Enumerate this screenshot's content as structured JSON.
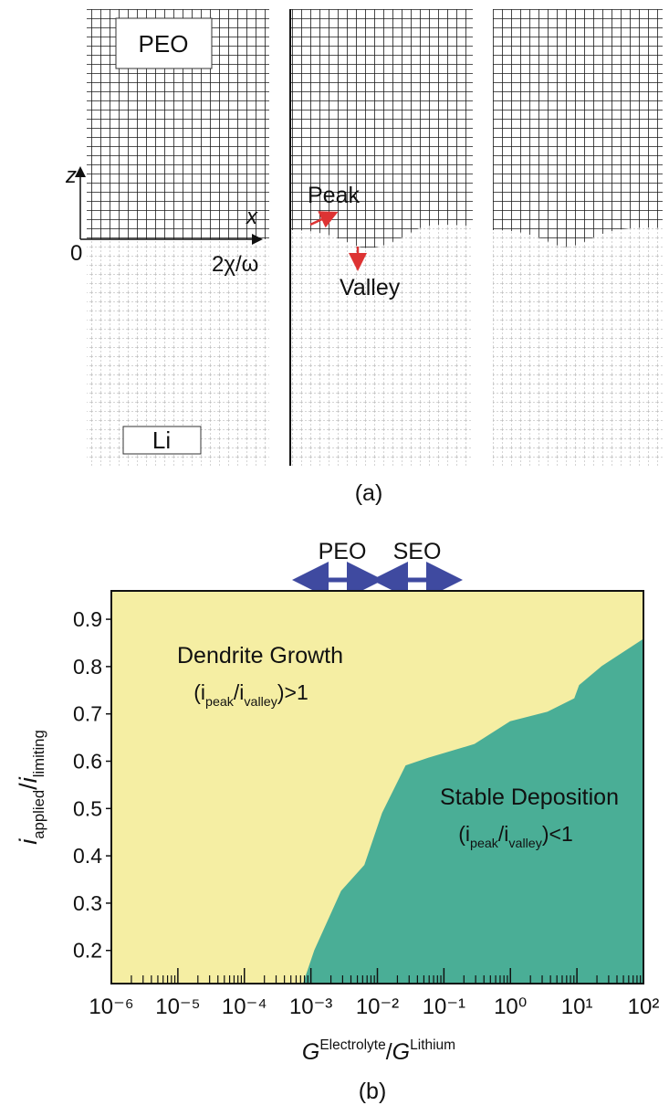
{
  "figure_a": {
    "panel_label": "(a)",
    "top_material": "PEO",
    "bottom_material": "Li",
    "z_axis": "z",
    "x_axis": "x",
    "origin": "0",
    "wavelength": "2χ/ω",
    "peak": "Peak",
    "valley": "Valley"
  },
  "chart_data": {
    "type": "area",
    "panel_label": "(b)",
    "materials": [
      "PEO",
      "SEO"
    ],
    "xlabel": [
      {
        "text": "G",
        "italic": true
      },
      {
        "text": "Electrolyte",
        "sup": true
      },
      {
        "text": "/"
      },
      {
        "text": "G",
        "italic": true
      },
      {
        "text": "Lithium",
        "sup": true
      }
    ],
    "ylabel": [
      {
        "text": "i",
        "italic": true
      },
      {
        "text": "applied",
        "sub": true
      },
      {
        "text": "/"
      },
      {
        "text": "i",
        "italic": true
      },
      {
        "text": "limiting",
        "sub": true
      }
    ],
    "annotations": [
      {
        "parts": [
          {
            "text": "Dendrite Growth"
          }
        ]
      },
      {
        "parts": [
          {
            "text": "(i"
          },
          {
            "text": "peak",
            "sub": true
          },
          {
            "text": "/i"
          },
          {
            "text": "valley",
            "sub": true
          },
          {
            "text": ")>1"
          }
        ]
      },
      {
        "parts": [
          {
            "text": "Stable Deposition"
          }
        ]
      },
      {
        "parts": [
          {
            "text": "(i"
          },
          {
            "text": "peak",
            "sub": true
          },
          {
            "text": "/i"
          },
          {
            "text": "valley",
            "sub": true
          },
          {
            "text": ")<1"
          }
        ]
      }
    ],
    "x": [
      0.00078,
      0.00115,
      0.0029,
      0.0065,
      0.012,
      0.027,
      0.059,
      0.29,
      1,
      3.6,
      9.3,
      11,
      24,
      100
    ],
    "values": [
      0.13,
      0.2,
      0.325,
      0.38,
      0.49,
      0.59,
      0.606,
      0.635,
      0.683,
      0.703,
      0.732,
      0.76,
      0.8,
      0.857
    ],
    "color": "#4aae96",
    "background": "#f5eea3",
    "xscale": "log",
    "xlim": [
      1e-06,
      100
    ],
    "xticks": [
      {
        "value": 1e-06,
        "label": "10⁻⁶"
      },
      {
        "value": 1e-05,
        "label": "10⁻⁵"
      },
      {
        "value": 0.0001,
        "label": "10⁻⁴"
      },
      {
        "value": 0.001,
        "label": "10⁻³"
      },
      {
        "value": 0.01,
        "label": "10⁻²"
      },
      {
        "value": 0.1,
        "label": "10⁻¹"
      },
      {
        "value": 1,
        "label": "10⁰"
      },
      {
        "value": 10,
        "label": "10¹"
      },
      {
        "value": 100,
        "label": "10²"
      }
    ],
    "ylim": [
      0.13,
      0.96
    ],
    "yticks": [
      0.2,
      0.3,
      0.4,
      0.5,
      0.6,
      0.7,
      0.8,
      0.9
    ],
    "grid": false
  }
}
